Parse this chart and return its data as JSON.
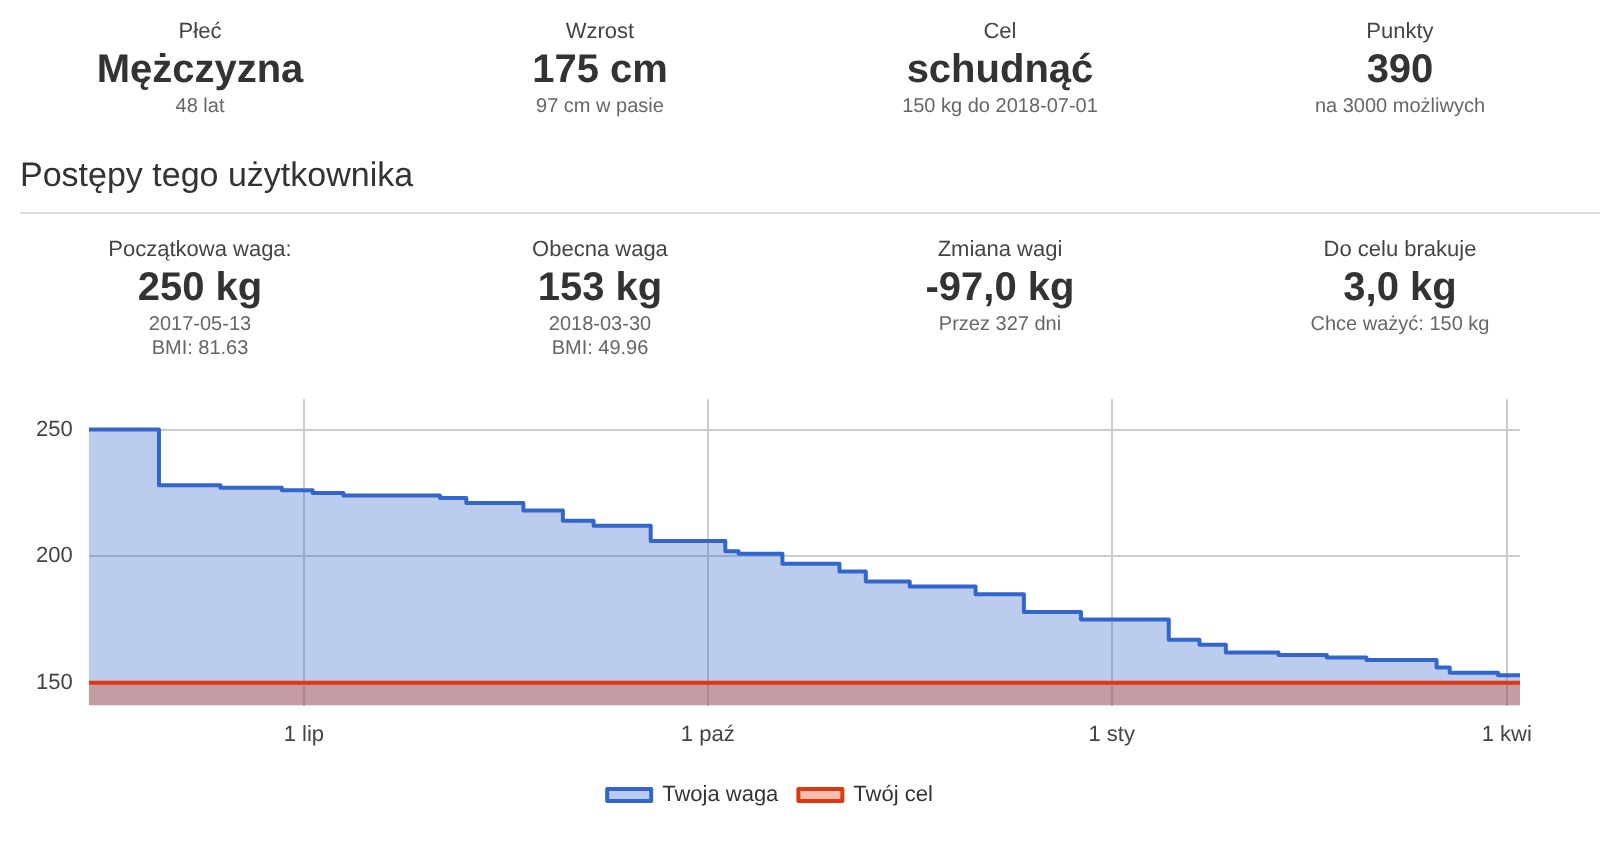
{
  "chart_data": [
    {
      "type": "other",
      "annotations": [
        "Płeć",
        "Mężczyzna",
        "48 lat",
        "Wzrost",
        "175 cm",
        "97 cm w pasie",
        "Cel",
        "schudnąć",
        "150 kg do 2018-07-01",
        "Punkty",
        "390",
        "na 3000 możliwych"
      ]
    },
    {
      "type": "area",
      "title": "Postępy tego użytkownika",
      "annotations": [
        "Początkowa waga:",
        "250 kg",
        "2017-05-13",
        "BMI: 81.63",
        "Obecna waga",
        "153 kg",
        "2018-03-30",
        "BMI: 49.96",
        "Zmiana wagi",
        "-97,0 kg",
        "Przez 327 dni",
        null,
        "Do celu brakuje",
        "3,0 kg",
        "Chce ważyć: 150 kg",
        null
      ],
      "series": [
        {
          "name": "Twoja waga",
          "color": "#3366cc",
          "x": [
            "2017-05-13",
            "2017-05-29",
            "2017-05-29",
            "2017-06-12",
            "2017-06-12",
            "2017-06-26",
            "2017-06-26",
            "2017-07-03",
            "2017-07-03",
            "2017-07-10",
            "2017-07-10",
            "2017-08-01",
            "2017-08-01",
            "2017-08-07",
            "2017-08-07",
            "2017-08-20",
            "2017-08-20",
            "2017-08-29",
            "2017-08-29",
            "2017-09-05",
            "2017-09-05",
            "2017-09-18",
            "2017-09-18",
            "2017-10-05",
            "2017-10-05",
            "2017-10-08",
            "2017-10-08",
            "2017-10-18",
            "2017-10-18",
            "2017-10-31",
            "2017-10-31",
            "2017-11-06",
            "2017-11-06",
            "2017-11-16",
            "2017-11-16",
            "2017-12-01",
            "2017-12-01",
            "2017-12-12",
            "2017-12-12",
            "2017-12-25",
            "2017-12-25",
            "2018-01-14",
            "2018-01-14",
            "2018-01-21",
            "2018-01-21",
            "2018-01-27",
            "2018-01-27",
            "2018-02-08",
            "2018-02-08",
            "2018-02-19",
            "2018-02-19",
            "2018-02-28",
            "2018-02-28",
            "2018-03-16",
            "2018-03-16",
            "2018-03-19",
            "2018-03-19",
            "2018-03-30",
            "2018-03-30",
            "2018-04-04"
          ],
          "values": [
            250,
            250,
            228,
            228,
            227,
            227,
            226,
            226,
            225,
            225,
            224,
            224,
            223,
            223,
            221,
            221,
            218,
            218,
            214,
            214,
            212,
            212,
            206,
            206,
            202,
            202,
            201,
            201,
            197,
            197,
            194,
            194,
            190,
            190,
            188,
            188,
            185,
            185,
            178,
            178,
            175,
            175,
            167,
            167,
            165,
            165,
            162,
            162,
            161,
            161,
            160,
            160,
            159,
            159,
            156,
            156,
            154,
            154,
            153,
            153
          ]
        },
        {
          "name": "Twój cel",
          "color": "#dc3912",
          "x": [
            "2017-05-13",
            "2018-04-04"
          ],
          "values": [
            150,
            150
          ]
        }
      ],
      "xlim": [
        "2017-05-13",
        "2018-04-04"
      ],
      "xticks": [
        {
          "value": "2017-07-01",
          "label": "1 lip"
        },
        {
          "value": "2017-10-01",
          "label": "1 paź"
        },
        {
          "value": "2018-01-01",
          "label": "1 sty"
        },
        {
          "value": "2018-04-01",
          "label": "1 kwi"
        }
      ],
      "ylim": [
        141,
        262
      ],
      "yticks": [
        150,
        200,
        250
      ],
      "grid": true,
      "legend": "bottom"
    }
  ]
}
